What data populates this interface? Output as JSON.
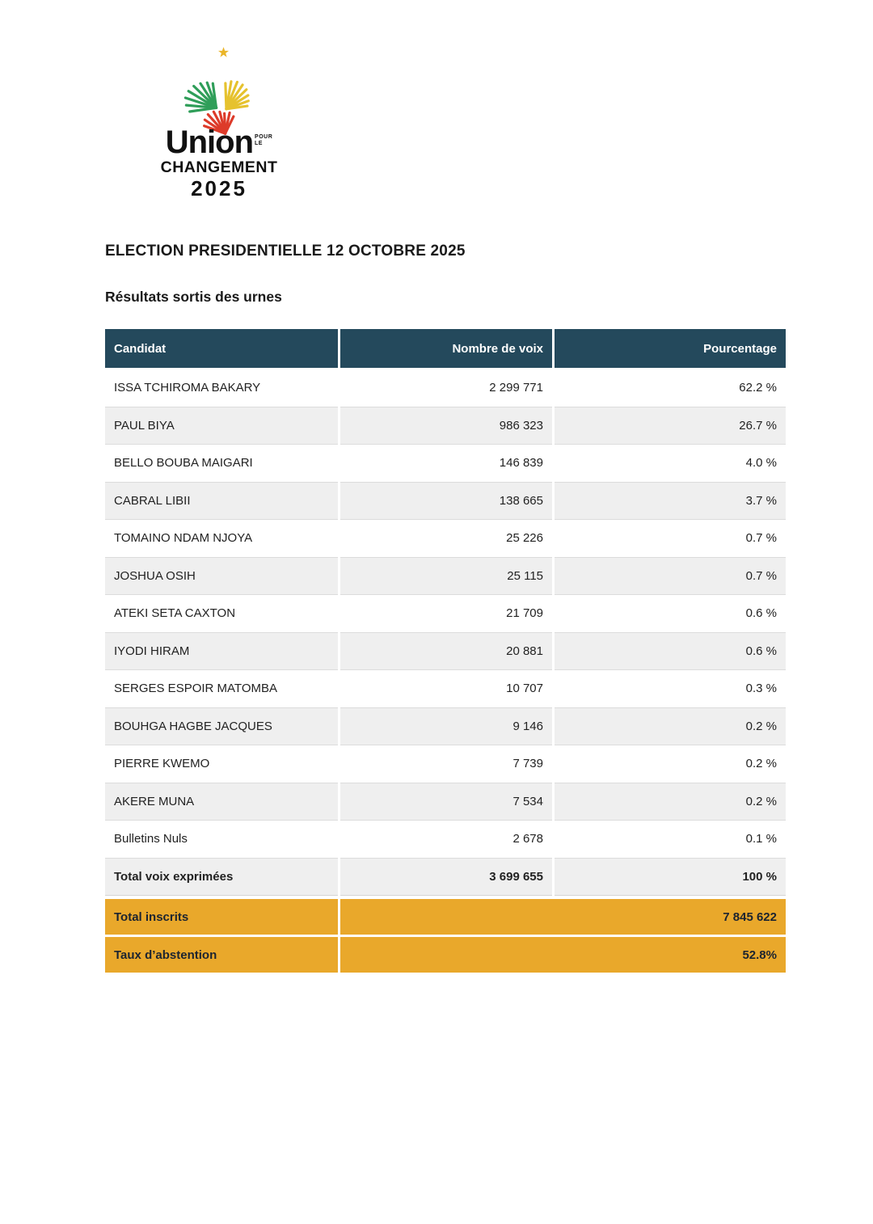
{
  "logo": {
    "wordmark_main": "Union",
    "wordmark_small_1": "POUR",
    "wordmark_small_2": "LE",
    "wordmark_line2": "CHANGEMENT",
    "wordmark_line3": "2025",
    "colors": {
      "green": "#2f9e59",
      "yellow": "#e6c22e",
      "red": "#dd3b2a",
      "star": "#eab529",
      "text": "#111111"
    }
  },
  "title": "ELECTION PRESIDENTIELLE 12 OCTOBRE 2025",
  "subtitle": "Résultats sortis des urnes",
  "results_table": {
    "columns": [
      "Candidat",
      "Nombre de voix",
      "Pourcentage"
    ],
    "rows": [
      {
        "candidate": "ISSA TCHIROMA BAKARY",
        "votes": "2 299 771",
        "percentage": "62.2 %"
      },
      {
        "candidate": "PAUL BIYA",
        "votes": "986 323",
        "percentage": "26.7 %"
      },
      {
        "candidate": "BELLO BOUBA MAIGARI",
        "votes": "146 839",
        "percentage": "4.0 %"
      },
      {
        "candidate": "CABRAL LIBII",
        "votes": "138 665",
        "percentage": "3.7 %"
      },
      {
        "candidate": "TOMAINO NDAM NJOYA",
        "votes": "25 226",
        "percentage": "0.7 %"
      },
      {
        "candidate": "JOSHUA OSIH",
        "votes": "25 115",
        "percentage": "0.7 %"
      },
      {
        "candidate": "ATEKI  SETA CAXTON",
        "votes": "21 709",
        "percentage": "0.6 %"
      },
      {
        "candidate": "IYODI HIRAM",
        "votes": "20 881",
        "percentage": "0.6 %"
      },
      {
        "candidate": "SERGES ESPOIR MATOMBA",
        "votes": "10 707",
        "percentage": "0.3 %"
      },
      {
        "candidate": "BOUHGA HAGBE JACQUES",
        "votes": "9 146",
        "percentage": "0.2 %"
      },
      {
        "candidate": "PIERRE KWEMO",
        "votes": "7 739",
        "percentage": "0.2 %"
      },
      {
        "candidate": "AKERE MUNA",
        "votes": "7 534",
        "percentage": "0.2 %"
      },
      {
        "candidate": "Bulletins Nuls",
        "votes": "2 678",
        "percentage": "0.1 %"
      }
    ],
    "total_row": {
      "candidate": "Total voix exprimées",
      "votes": "3 699 655",
      "percentage": "100 %"
    },
    "summary_rows": [
      {
        "label": "Total inscrits",
        "value": "7 845 622"
      },
      {
        "label": "Taux d’abstention",
        "value": "52.8%"
      }
    ],
    "colors": {
      "header_bg": "#24495c",
      "header_text": "#ffffff",
      "row_alt_bg": "#efefef",
      "summary_bg": "#e9a82b"
    }
  }
}
